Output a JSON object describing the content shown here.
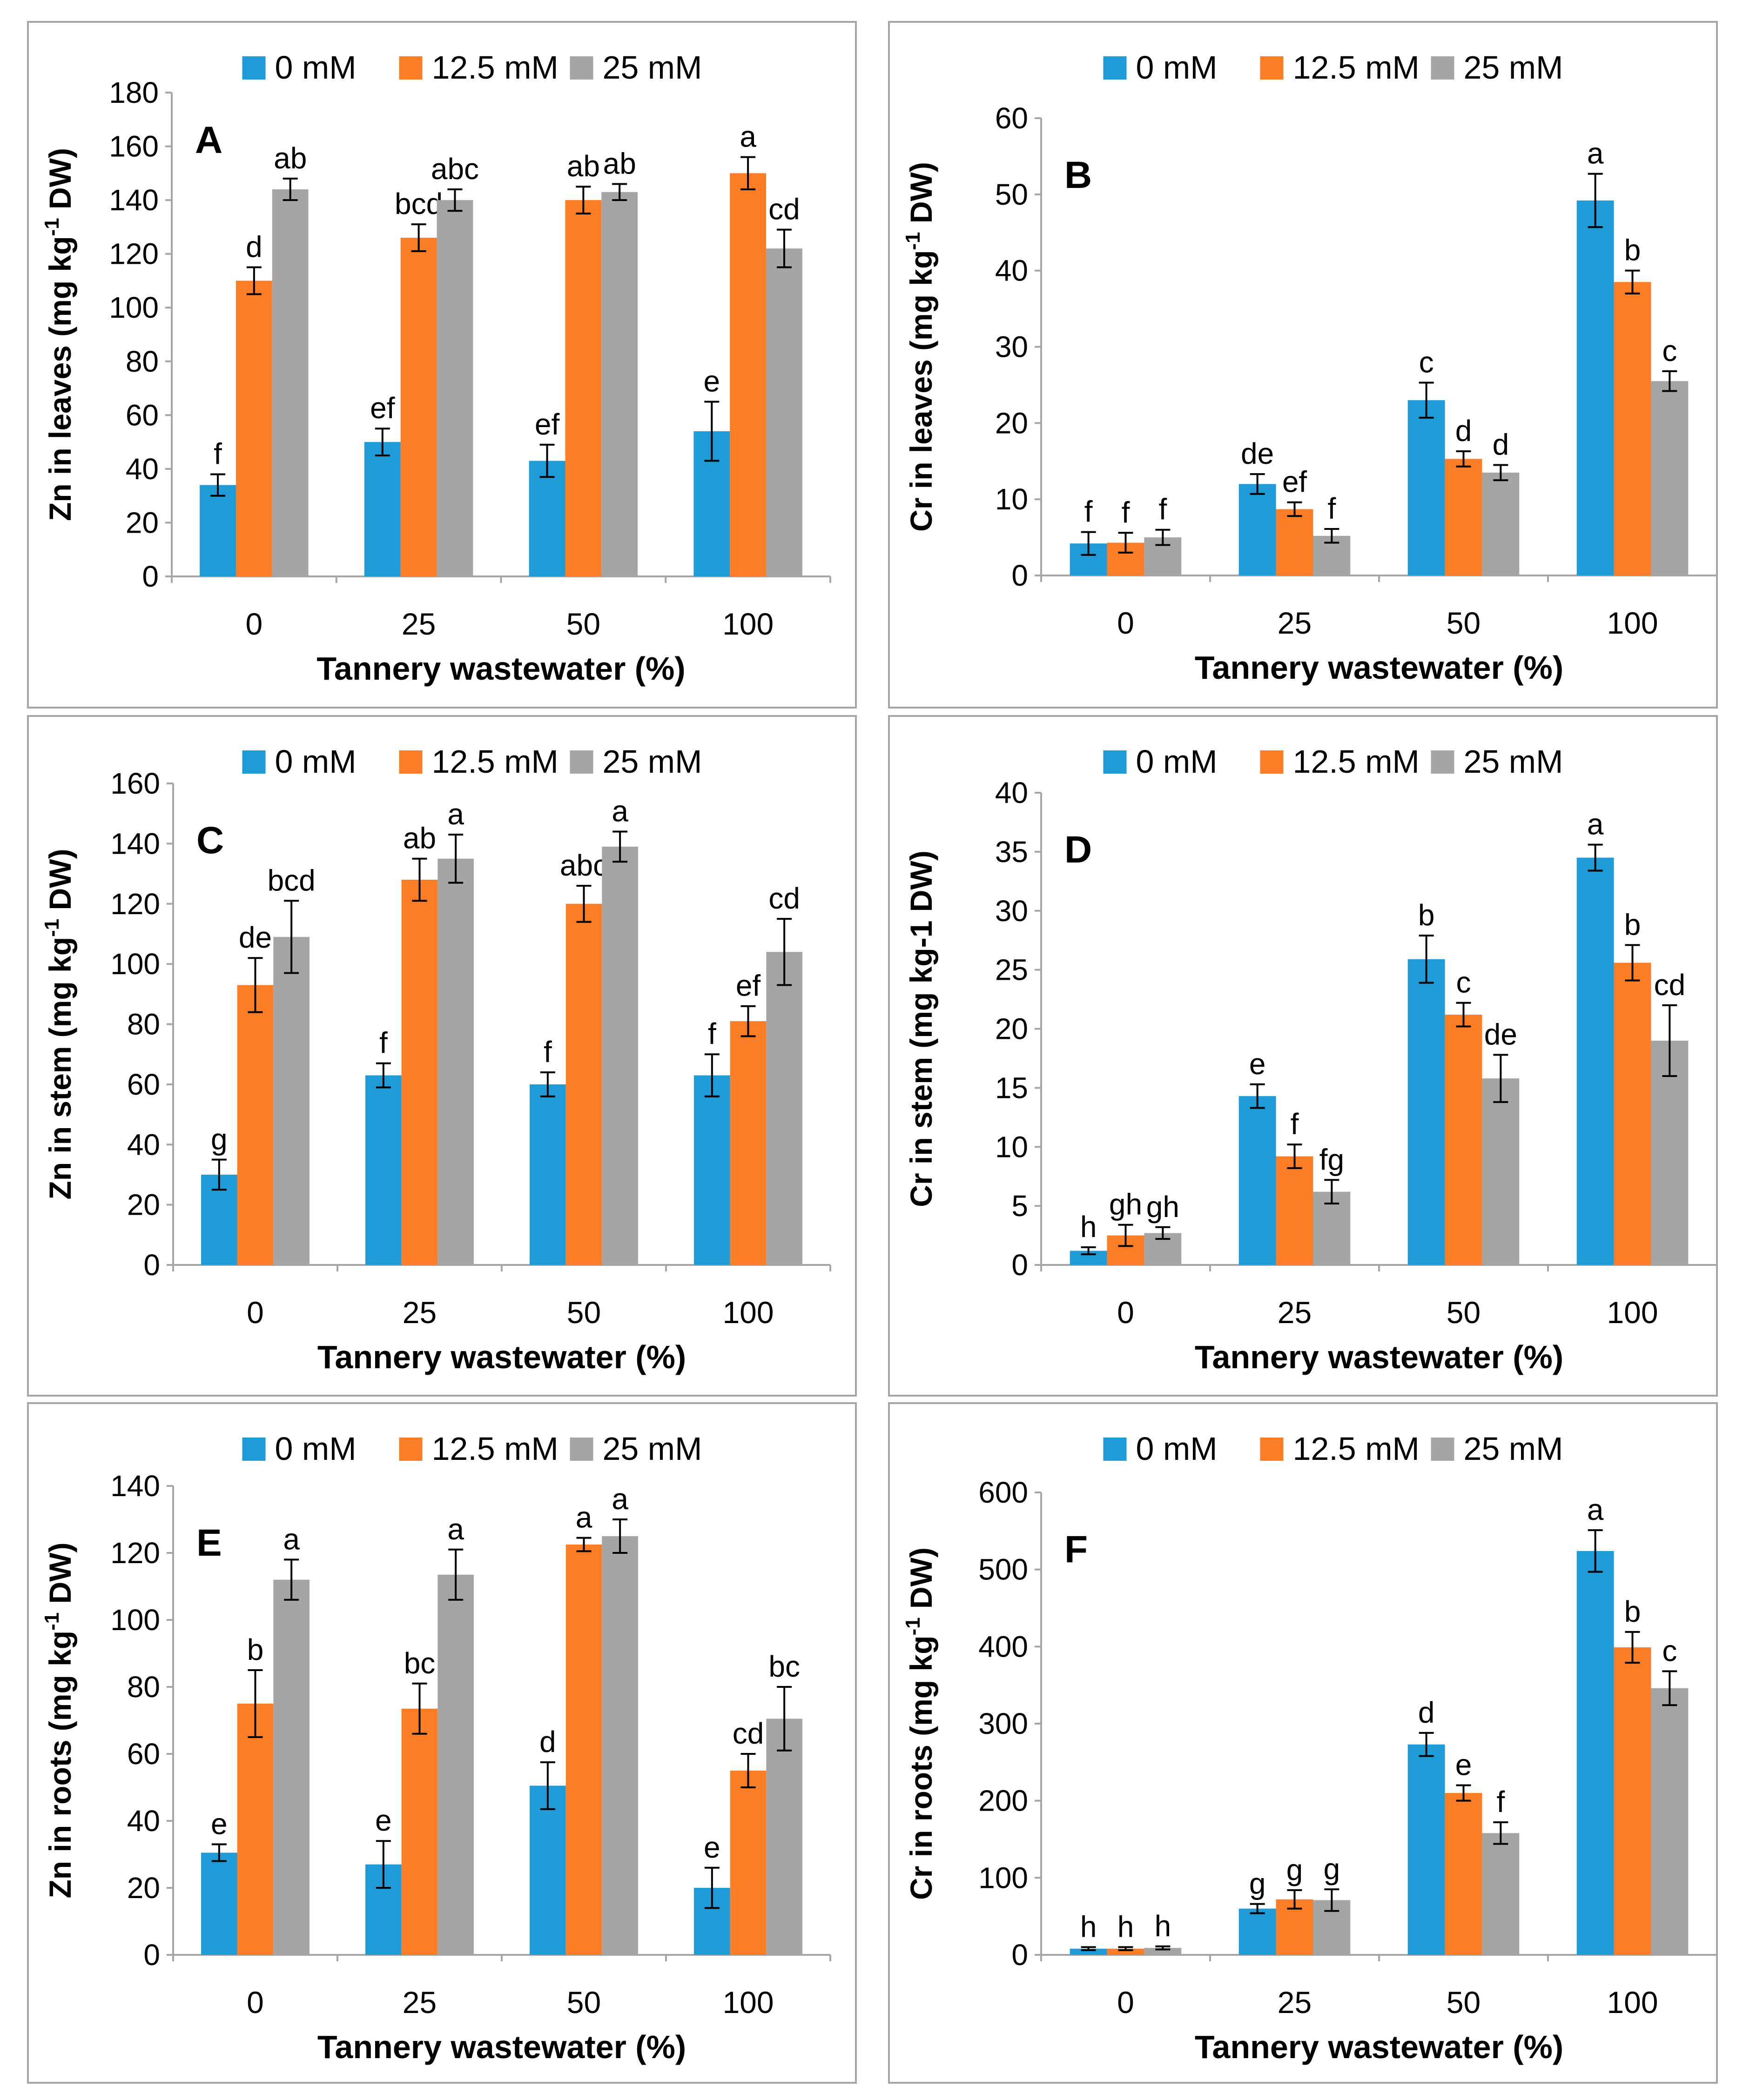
{
  "colors": {
    "s0": "#1f9bd7",
    "s1": "#fb7d25",
    "s2": "#a5a5a5",
    "axis": "#a6a6a6",
    "text": "#000000"
  },
  "chart_data": [
    {
      "type": "bar",
      "panel_letter": "A",
      "title": "",
      "categories": [
        "0",
        "25",
        "50",
        "100"
      ],
      "xlabel": "Tannery wastewater (%)",
      "ylabel_pre": "Zn in leaves (mg kg",
      "ylabel_sup": "-1",
      "ylabel_post": " DW)",
      "ylim": [
        0,
        180
      ],
      "yticks": [
        "0",
        "20",
        "40",
        "60",
        "80",
        "100",
        "120",
        "140",
        "160",
        "180"
      ],
      "ystep": 20,
      "legend": [
        "0 mM",
        "12.5 mM",
        "25 mM"
      ],
      "series": [
        {
          "name": "0 mM",
          "values": [
            34,
            50,
            43,
            54
          ],
          "errors": [
            4,
            5,
            6,
            11
          ],
          "letters": [
            "f",
            "ef",
            "ef",
            "e"
          ]
        },
        {
          "name": "12.5 mM",
          "values": [
            110,
            126,
            140,
            150
          ],
          "errors": [
            5,
            5,
            5,
            6
          ],
          "letters": [
            "d",
            "bcd",
            "ab",
            "a"
          ]
        },
        {
          "name": "25 mM",
          "values": [
            144,
            140,
            143,
            122
          ],
          "errors": [
            4,
            4,
            3,
            7
          ],
          "letters": [
            "ab",
            "abc",
            "ab",
            "cd"
          ]
        }
      ]
    },
    {
      "type": "bar",
      "panel_letter": "B",
      "title": "",
      "categories": [
        "0",
        "25",
        "50",
        "100"
      ],
      "xlabel": "Tannery wastewater (%)",
      "ylabel_pre": "Cr in leaves (mg kg",
      "ylabel_sup": "-1",
      "ylabel_post": " DW)",
      "ylim": [
        0,
        60
      ],
      "yticks": [
        "0",
        "10",
        "20",
        "30",
        "40",
        "50",
        "60"
      ],
      "ystep": 10,
      "legend": [
        "0 mM",
        "12.5 mM",
        "25 mM"
      ],
      "series": [
        {
          "name": "0 mM",
          "values": [
            4.2,
            12,
            23,
            49.2
          ],
          "errors": [
            1.5,
            1.3,
            2.3,
            3.5
          ],
          "letters": [
            "f",
            "de",
            "c",
            "a"
          ]
        },
        {
          "name": "12.5 mM",
          "values": [
            4.3,
            8.7,
            15.3,
            38.5
          ],
          "errors": [
            1.3,
            0.9,
            1.0,
            1.5
          ],
          "letters": [
            "f",
            "ef",
            "d",
            "b"
          ]
        },
        {
          "name": "25 mM",
          "values": [
            5.0,
            5.2,
            13.5,
            25.5
          ],
          "errors": [
            1.0,
            0.9,
            1.0,
            1.3
          ],
          "letters": [
            "f",
            "f",
            "d",
            "c"
          ]
        }
      ]
    },
    {
      "type": "bar",
      "panel_letter": "C",
      "title": "",
      "categories": [
        "0",
        "25",
        "50",
        "100"
      ],
      "xlabel": "Tannery wastewater (%)",
      "ylabel_pre": "Zn in stem (mg kg",
      "ylabel_sup": "-1",
      "ylabel_post": " DW)",
      "ylim": [
        0,
        160
      ],
      "yticks": [
        "0",
        "20",
        "40",
        "60",
        "80",
        "100",
        "120",
        "140",
        "160"
      ],
      "ystep": 20,
      "legend": [
        "0 mM",
        "12.5 mM",
        "25 mM"
      ],
      "series": [
        {
          "name": "0 mM",
          "values": [
            30,
            63,
            60,
            63
          ],
          "errors": [
            5,
            4,
            4,
            7
          ],
          "letters": [
            "g",
            "f",
            "f",
            "f"
          ]
        },
        {
          "name": "12.5 mM",
          "values": [
            93,
            128,
            120,
            81
          ],
          "errors": [
            9,
            7,
            6,
            5
          ],
          "letters": [
            "de",
            "ab",
            "abc",
            "ef"
          ]
        },
        {
          "name": "25 mM",
          "values": [
            109,
            135,
            139,
            104
          ],
          "errors": [
            12,
            8,
            5,
            11
          ],
          "letters": [
            "bcd",
            "a",
            "a",
            "cd"
          ]
        }
      ]
    },
    {
      "type": "bar",
      "panel_letter": "D",
      "title": "",
      "categories": [
        "0",
        "25",
        "50",
        "100"
      ],
      "xlabel": "Tannery wastewater (%)",
      "ylabel_pre": "Cr in stem (mg kg-1 DW)",
      "ylabel_sup": "",
      "ylabel_post": "",
      "ylim": [
        0,
        40
      ],
      "yticks": [
        "0",
        "5",
        "10",
        "15",
        "20",
        "25",
        "30",
        "35",
        "40"
      ],
      "ystep": 5,
      "legend": [
        "0 mM",
        "12.5 mM",
        "25 mM"
      ],
      "series": [
        {
          "name": "0 mM",
          "values": [
            1.2,
            14.3,
            25.9,
            34.5
          ],
          "errors": [
            0.3,
            1.0,
            2.0,
            1.1
          ],
          "letters": [
            "h",
            "e",
            "b",
            "a"
          ]
        },
        {
          "name": "12.5 mM",
          "values": [
            2.5,
            9.2,
            21.2,
            25.6
          ],
          "errors": [
            0.9,
            1.0,
            1.0,
            1.5
          ],
          "letters": [
            "gh",
            "f",
            "c",
            "b"
          ]
        },
        {
          "name": "25 mM",
          "values": [
            2.7,
            6.2,
            15.8,
            19.0
          ],
          "errors": [
            0.5,
            1.0,
            2.0,
            3.0
          ],
          "letters": [
            "gh",
            "fg",
            "de",
            "cd"
          ]
        }
      ]
    },
    {
      "type": "bar",
      "panel_letter": "E",
      "title": "",
      "categories": [
        "0",
        "25",
        "50",
        "100"
      ],
      "xlabel": "Tannery wastewater (%)",
      "ylabel_pre": "Zn in roots (mg kg",
      "ylabel_sup": "-1",
      "ylabel_post": " DW)",
      "ylim": [
        0,
        140
      ],
      "yticks": [
        "0",
        "20",
        "40",
        "60",
        "80",
        "100",
        "120",
        "140"
      ],
      "ystep": 20,
      "legend": [
        "0 mM",
        "12.5 mM",
        "25 mM"
      ],
      "series": [
        {
          "name": "0 mM",
          "values": [
            30.5,
            27,
            50.5,
            20
          ],
          "errors": [
            2.5,
            7,
            7,
            6
          ],
          "letters": [
            "e",
            "e",
            "d",
            "e"
          ]
        },
        {
          "name": "12.5 mM",
          "values": [
            75,
            73.5,
            122.5,
            55
          ],
          "errors": [
            10,
            7.5,
            2,
            5
          ],
          "letters": [
            "b",
            "bc",
            "a",
            "cd"
          ]
        },
        {
          "name": "25 mM",
          "values": [
            112,
            113.5,
            125,
            70.5
          ],
          "errors": [
            6,
            7.5,
            5,
            9.5
          ],
          "letters": [
            "a",
            "a",
            "a",
            "bc"
          ]
        }
      ]
    },
    {
      "type": "bar",
      "panel_letter": "F",
      "title": "",
      "categories": [
        "0",
        "25",
        "50",
        "100"
      ],
      "xlabel": "Tannery wastewater (%)",
      "ylabel_pre": "Cr in roots (mg kg",
      "ylabel_sup": "-1",
      "ylabel_post": " DW)",
      "ylim": [
        0,
        600
      ],
      "yticks": [
        "0",
        "100",
        "200",
        "300",
        "400",
        "500",
        "600"
      ],
      "ystep": 100,
      "legend": [
        "0 mM",
        "12.5 mM",
        "25 mM"
      ],
      "series": [
        {
          "name": "0 mM",
          "values": [
            8,
            60,
            273,
            524
          ],
          "errors": [
            2,
            6,
            15,
            27
          ],
          "letters": [
            "h",
            "g",
            "d",
            "a"
          ]
        },
        {
          "name": "12.5 mM",
          "values": [
            8,
            72,
            210,
            399
          ],
          "errors": [
            2,
            12,
            10,
            20
          ],
          "letters": [
            "h",
            "g",
            "e",
            "b"
          ]
        },
        {
          "name": "25 mM",
          "values": [
            9,
            71,
            158,
            346
          ],
          "errors": [
            2,
            14,
            14,
            22
          ],
          "letters": [
            "h",
            "g",
            "f",
            "c"
          ]
        }
      ]
    }
  ]
}
